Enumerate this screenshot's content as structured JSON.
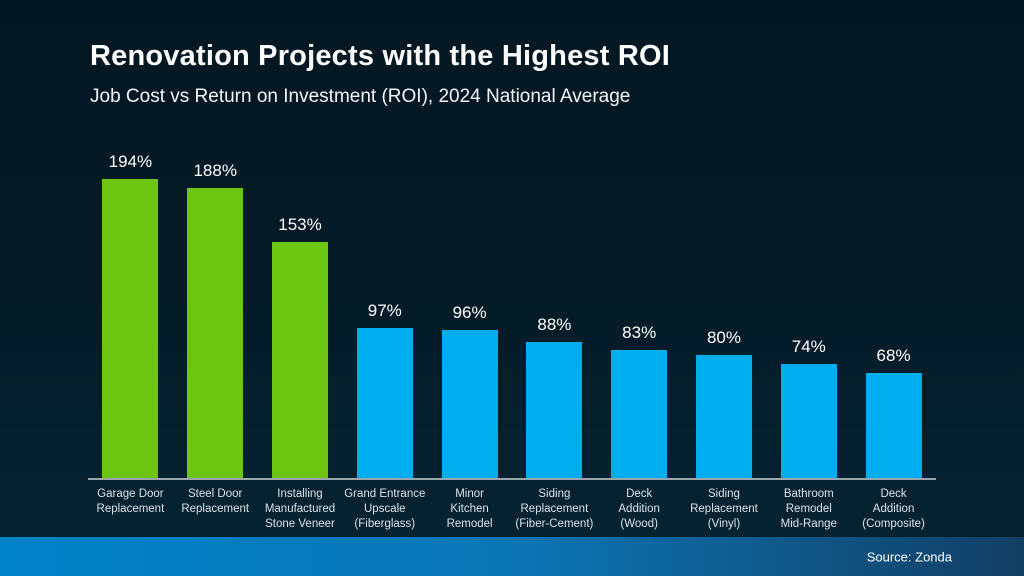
{
  "header": {
    "title": "Renovation Projects with the Highest ROI",
    "subtitle": "Job Cost vs Return on Investment (ROI), 2024 National Average"
  },
  "footer": {
    "source": "Source: Zonda"
  },
  "chart_data": {
    "type": "bar",
    "title": "Renovation Projects with the Highest ROI",
    "subtitle": "Job Cost vs Return on Investment (ROI), 2024 National Average",
    "categories": [
      "Garage Door Replacement",
      "Steel Door Replacement",
      "Installing Manufactured Stone Veneer",
      "Grand Entrance Upscale (Fiberglass)",
      "Minor Kitchen Remodel",
      "Siding Replacement (Fiber-Cement)",
      "Deck Addition (Wood)",
      "Siding Replacement (Vinyl)",
      "Bathroom Remodel Mid-Range",
      "Deck Addition (Composite)"
    ],
    "category_lines": [
      [
        "Garage Door",
        "Replacement"
      ],
      [
        "Steel Door",
        "Replacement"
      ],
      [
        "Installing",
        "Manufactured",
        "Stone Veneer"
      ],
      [
        "Grand Entrance",
        "Upscale",
        "(Fiberglass)"
      ],
      [
        "Minor",
        "Kitchen",
        "Remodel"
      ],
      [
        "Siding",
        "Replacement",
        "(Fiber-Cement)"
      ],
      [
        "Deck",
        "Addition",
        "(Wood)"
      ],
      [
        "Siding",
        "Replacement",
        "(Vinyl)"
      ],
      [
        "Bathroom",
        "Remodel",
        "Mid-Range"
      ],
      [
        "Deck",
        "Addition",
        "(Composite)"
      ]
    ],
    "values": [
      194,
      188,
      153,
      97,
      96,
      88,
      83,
      80,
      74,
      68
    ],
    "value_labels": [
      "194%",
      "188%",
      "153%",
      "97%",
      "96%",
      "88%",
      "83%",
      "80%",
      "74%",
      "68%"
    ],
    "colors": [
      "#6cc611",
      "#6cc611",
      "#6cc611",
      "#00aeef",
      "#00aeef",
      "#00aeef",
      "#00aeef",
      "#00aeef",
      "#00aeef",
      "#00aeef"
    ],
    "highlight_color": "#6cc611",
    "base_color": "#00aeef",
    "xlabel": "",
    "ylabel": "",
    "ylim": [
      0,
      200
    ],
    "grid": false,
    "legend": false,
    "data_labels": "above bars",
    "source": "Source: Zonda"
  }
}
